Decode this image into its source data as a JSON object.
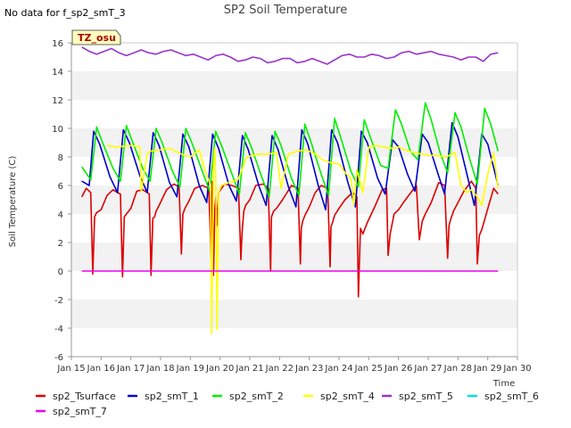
{
  "no_data_note": "No data for f_sp2_smT_3",
  "badge": "TZ_osu",
  "chart_data": {
    "type": "line",
    "title": "SP2 Soil Temperature",
    "xlabel": "Time",
    "ylabel": "Soil Temperature (C)",
    "xlim": [
      15,
      30
    ],
    "ylim": [
      -6,
      16
    ],
    "x_ticks": [
      15,
      16,
      17,
      18,
      19,
      20,
      21,
      22,
      23,
      24,
      25,
      26,
      27,
      28,
      29,
      30
    ],
    "x_tick_labels": [
      "Jan 15",
      "Jan 16",
      "Jan 17",
      "Jan 18",
      "Jan 19",
      "Jan 20",
      "Jan 21",
      "Jan 22",
      "Jan 23",
      "Jan 24",
      "Jan 25",
      "Jan 26",
      "Jan 27",
      "Jan 28",
      "Jan 29",
      "Jan 30"
    ],
    "y_ticks": [
      -6,
      -4,
      -2,
      0,
      2,
      4,
      6,
      8,
      10,
      12,
      14,
      16
    ],
    "y_tick_labels": [
      "-6",
      "-4",
      "-2",
      "0",
      "2",
      "4",
      "6",
      "8",
      "10",
      "12",
      "14",
      "16"
    ],
    "grid": "horizontal bands",
    "legend_position": "bottom",
    "series": [
      {
        "name": "sp2_Tsurface",
        "color": "#dd0000",
        "x": [
          15.35,
          15.5,
          15.65,
          15.72,
          15.78,
          15.85,
          16.0,
          16.2,
          16.4,
          16.55,
          16.65,
          16.72,
          16.78,
          16.85,
          17.0,
          17.2,
          17.4,
          17.55,
          17.62,
          17.68,
          17.74,
          17.8,
          17.85,
          17.95,
          18.2,
          18.45,
          18.62,
          18.7,
          18.75,
          18.82,
          18.95,
          19.15,
          19.4,
          19.62,
          19.7,
          19.74,
          19.78,
          19.82,
          19.86,
          19.9,
          19.95,
          20.15,
          20.4,
          20.62,
          20.7,
          20.74,
          20.8,
          20.86,
          21.0,
          21.2,
          21.45,
          21.62,
          21.7,
          21.73,
          21.8,
          21.9,
          22.1,
          22.4,
          22.62,
          22.7,
          22.73,
          22.78,
          22.85,
          23.0,
          23.2,
          23.4,
          23.62,
          23.7,
          23.73,
          23.78,
          23.85,
          24.0,
          24.2,
          24.45,
          24.6,
          24.65,
          24.72,
          24.8,
          24.95,
          25.2,
          25.45,
          25.6,
          25.65,
          25.72,
          25.85,
          26.0,
          26.2,
          26.45,
          26.6,
          26.7,
          26.8,
          26.9,
          27.1,
          27.35,
          27.55,
          27.65,
          27.7,
          27.75,
          27.85,
          28.0,
          28.2,
          28.45,
          28.6,
          28.65,
          28.72,
          28.8,
          28.95,
          29.2,
          29.35
        ],
        "y": [
          5.2,
          5.8,
          5.5,
          -0.2,
          3.8,
          4.1,
          4.3,
          5.3,
          5.7,
          5.5,
          5.4,
          -0.4,
          3.8,
          4.0,
          4.4,
          5.6,
          5.7,
          5.5,
          5.4,
          -0.3,
          3.7,
          3.8,
          4.2,
          4.6,
          5.7,
          6.1,
          5.9,
          1.2,
          4.0,
          4.4,
          4.9,
          5.8,
          6.0,
          5.8,
          0.9,
          6.3,
          -0.3,
          4.3,
          5.2,
          3.2,
          5.5,
          6.1,
          6.0,
          5.8,
          0.8,
          2.7,
          4.2,
          4.6,
          5.0,
          6.0,
          6.1,
          5.8,
          0.0,
          3.8,
          4.2,
          4.4,
          5.0,
          6.0,
          5.8,
          0.5,
          3.0,
          3.5,
          3.9,
          4.5,
          5.5,
          6.0,
          5.8,
          0.3,
          3.1,
          3.4,
          3.9,
          4.4,
          5.0,
          5.5,
          5.2,
          -1.8,
          3.0,
          2.6,
          3.4,
          4.5,
          5.7,
          5.8,
          1.1,
          2.6,
          4.0,
          4.3,
          4.9,
          5.6,
          6.0,
          2.2,
          3.5,
          4.0,
          4.8,
          6.2,
          6.0,
          0.9,
          3.2,
          3.6,
          4.2,
          4.8,
          5.6,
          6.3,
          5.8,
          0.5,
          2.5,
          2.9,
          4.0,
          5.8,
          5.4
        ]
      },
      {
        "name": "sp2_smT_1",
        "color": "#0000cc",
        "x": [
          15.35,
          15.6,
          15.75,
          15.95,
          16.3,
          16.55,
          16.75,
          16.95,
          17.3,
          17.55,
          17.75,
          17.95,
          18.3,
          18.55,
          18.75,
          18.95,
          19.3,
          19.55,
          19.75,
          19.95,
          20.3,
          20.55,
          20.75,
          20.95,
          21.3,
          21.55,
          21.75,
          21.95,
          22.3,
          22.55,
          22.75,
          22.95,
          23.3,
          23.55,
          23.75,
          23.95,
          24.3,
          24.55,
          24.75,
          24.95,
          25.3,
          25.55,
          25.8,
          26.0,
          26.3,
          26.55,
          26.8,
          27.0,
          27.3,
          27.55,
          27.8,
          28.0,
          28.3,
          28.55,
          28.8,
          29.0,
          29.35
        ],
        "y": [
          6.3,
          6.0,
          9.8,
          8.9,
          6.6,
          5.5,
          9.9,
          9.0,
          6.7,
          5.5,
          9.7,
          8.8,
          6.2,
          5.2,
          9.6,
          8.7,
          6.0,
          4.8,
          9.6,
          8.6,
          6.0,
          4.9,
          9.5,
          8.5,
          6.0,
          4.6,
          9.5,
          8.5,
          5.9,
          4.5,
          9.9,
          8.9,
          6.0,
          4.3,
          9.9,
          9.0,
          6.2,
          4.5,
          9.8,
          9.0,
          6.5,
          5.4,
          9.2,
          8.7,
          6.8,
          5.6,
          9.6,
          9.0,
          7.0,
          5.4,
          10.4,
          9.4,
          6.8,
          4.6,
          9.6,
          8.9,
          6.0
        ]
      },
      {
        "name": "sp2_smT_2",
        "color": "#00ee00",
        "x": [
          15.35,
          15.65,
          15.85,
          16.05,
          16.4,
          16.65,
          16.85,
          17.05,
          17.4,
          17.65,
          17.85,
          18.05,
          18.4,
          18.65,
          18.85,
          19.05,
          19.4,
          19.65,
          19.85,
          20.05,
          20.4,
          20.65,
          20.85,
          21.05,
          21.4,
          21.65,
          21.85,
          22.05,
          22.4,
          22.65,
          22.85,
          23.05,
          23.4,
          23.65,
          23.85,
          24.05,
          24.4,
          24.65,
          24.85,
          25.05,
          25.4,
          25.65,
          25.9,
          26.1,
          26.4,
          26.65,
          26.9,
          27.1,
          27.4,
          27.65,
          27.9,
          28.1,
          28.4,
          28.65,
          28.9,
          29.1,
          29.35
        ],
        "y": [
          7.3,
          6.4,
          10.1,
          9.0,
          7.2,
          6.3,
          10.2,
          9.1,
          7.2,
          6.3,
          10.0,
          9.0,
          7.0,
          5.9,
          10.0,
          9.0,
          7.0,
          5.6,
          9.8,
          8.8,
          6.8,
          5.4,
          9.7,
          8.7,
          6.6,
          5.2,
          9.8,
          8.8,
          6.5,
          5.3,
          10.3,
          9.1,
          6.8,
          5.3,
          10.7,
          9.4,
          7.0,
          5.9,
          10.6,
          9.4,
          7.4,
          7.2,
          11.3,
          10.3,
          8.4,
          7.8,
          11.8,
          10.6,
          8.3,
          6.9,
          11.1,
          10.1,
          7.8,
          6.1,
          11.4,
          10.3,
          8.4
        ]
      },
      {
        "name": "sp2_smT_4",
        "color": "#ffff00",
        "x": [
          16.2,
          16.5,
          17.0,
          17.3,
          17.35,
          17.55,
          17.65,
          18.0,
          18.3,
          18.6,
          18.8,
          19.0,
          19.3,
          19.5,
          19.6,
          19.68,
          19.72,
          19.78,
          19.82,
          19.86,
          19.9,
          19.95,
          20.05,
          20.3,
          20.6,
          20.9,
          21.3,
          21.6,
          21.9,
          22.05,
          22.3,
          22.6,
          22.9,
          23.2,
          23.45,
          23.7,
          24.0,
          24.2,
          24.4,
          24.5,
          24.6,
          24.8,
          25.0,
          25.25,
          25.5,
          25.8,
          26.0,
          26.2,
          26.5,
          26.8,
          27.0,
          27.3,
          27.6,
          27.9,
          28.1,
          28.3,
          28.45,
          28.65,
          28.8,
          29.0,
          29.2,
          29.35
        ],
        "y": [
          8.8,
          8.7,
          8.8,
          8.7,
          5.6,
          8.2,
          8.4,
          8.5,
          8.6,
          8.3,
          8.1,
          8.0,
          8.5,
          7.0,
          6.5,
          5.9,
          -4.4,
          7.5,
          8.6,
          6.0,
          -4.1,
          5.5,
          6.0,
          6.2,
          6.4,
          8.0,
          8.2,
          8.2,
          8.3,
          5.8,
          8.2,
          8.4,
          8.5,
          8.2,
          7.8,
          7.6,
          7.5,
          6.9,
          6.5,
          4.6,
          7.1,
          5.5,
          8.7,
          8.8,
          8.7,
          8.6,
          8.7,
          8.5,
          8.3,
          8.2,
          8.1,
          8.1,
          8.0,
          8.3,
          6.0,
          5.5,
          5.7,
          5.2,
          4.6,
          6.8,
          8.3,
          5.8
        ]
      },
      {
        "name": "sp2_smT_5",
        "color": "#9933cc",
        "x": [
          15.35,
          15.6,
          15.85,
          16.1,
          16.35,
          16.6,
          16.85,
          17.1,
          17.35,
          17.6,
          17.85,
          18.1,
          18.35,
          18.6,
          18.85,
          19.1,
          19.35,
          19.6,
          19.85,
          20.1,
          20.35,
          20.6,
          20.85,
          21.1,
          21.35,
          21.6,
          21.85,
          22.1,
          22.35,
          22.6,
          22.85,
          23.1,
          23.35,
          23.6,
          23.85,
          24.1,
          24.35,
          24.6,
          24.85,
          25.1,
          25.35,
          25.6,
          25.85,
          26.1,
          26.35,
          26.6,
          26.85,
          27.1,
          27.35,
          27.6,
          27.85,
          28.1,
          28.35,
          28.6,
          28.85,
          29.1,
          29.35
        ],
        "y": [
          15.7,
          15.4,
          15.2,
          15.4,
          15.6,
          15.3,
          15.1,
          15.3,
          15.5,
          15.3,
          15.2,
          15.4,
          15.5,
          15.3,
          15.1,
          15.2,
          15.0,
          14.8,
          15.1,
          15.2,
          15.0,
          14.7,
          14.8,
          15.0,
          14.9,
          14.6,
          14.7,
          14.9,
          14.9,
          14.6,
          14.7,
          14.9,
          14.7,
          14.5,
          14.8,
          15.1,
          15.2,
          15.0,
          15.0,
          15.2,
          15.1,
          14.9,
          15.0,
          15.3,
          15.4,
          15.2,
          15.3,
          15.4,
          15.2,
          15.1,
          15.0,
          14.8,
          15.0,
          15.0,
          14.7,
          15.2,
          15.3
        ]
      },
      {
        "name": "sp2_smT_6",
        "color": "#00dddd",
        "x": [],
        "y": []
      },
      {
        "name": "sp2_smT_7",
        "color": "#ee00ee",
        "x": [
          15.35,
          29.35
        ],
        "y": [
          0.0,
          0.0
        ]
      }
    ]
  }
}
